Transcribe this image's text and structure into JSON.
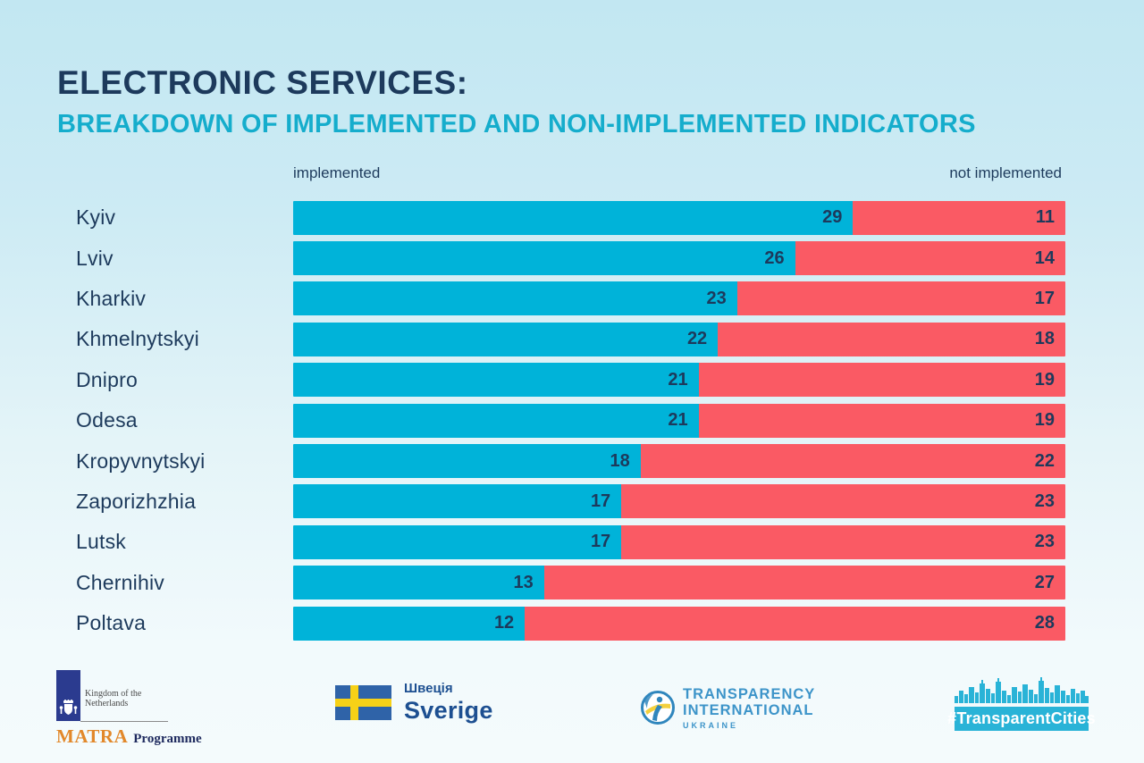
{
  "title": {
    "line1": "ELECTRONIC SERVICES:",
    "line2": "BREAKDOWN OF IMPLEMENTED AND NON-IMPLEMENTED INDICATORS"
  },
  "legend": {
    "left": "implemented",
    "right": "not implemented"
  },
  "chart_data": {
    "type": "bar",
    "orientation": "horizontal",
    "stacked": true,
    "total_per_row": 40,
    "categories": [
      "Kyiv",
      "Lviv",
      "Kharkiv",
      "Khmelnytskyi",
      "Dnipro",
      "Odesa",
      "Kropyvnytskyi",
      "Zaporizhzhia",
      "Lutsk",
      "Chernihiv",
      "Poltava"
    ],
    "series": [
      {
        "name": "implemented",
        "color": "#00b3d9",
        "values": [
          29,
          26,
          23,
          22,
          21,
          21,
          18,
          17,
          17,
          13,
          12
        ]
      },
      {
        "name": "not implemented",
        "color": "#fa5a64",
        "values": [
          11,
          14,
          17,
          18,
          19,
          19,
          22,
          23,
          23,
          27,
          28
        ]
      }
    ],
    "title": "ELECTRONIC SERVICES: BREAKDOWN OF IMPLEMENTED AND NON-IMPLEMENTED INDICATORS",
    "xlabel": "",
    "ylabel": "",
    "xlim": [
      0,
      40
    ],
    "grid": false,
    "legend_position": "top",
    "value_labels": "inside-right-of-segment"
  },
  "colors": {
    "background_top": "#c2e7f2",
    "background_bottom": "#f4fbfc",
    "title_navy": "#1d3a5c",
    "title_teal": "#15adcc",
    "bar_implemented": "#00b3d9",
    "bar_not_implemented": "#fa5a64",
    "value_text": "#1d3a5c"
  },
  "footer": {
    "matra": {
      "caption": "Kingdom of the Netherlands",
      "program_name": "MATRA",
      "program_word": "Programme"
    },
    "sweden": {
      "name_uk": "Швеція",
      "name_sv": "Sverige"
    },
    "transparency": {
      "line1": "TRANSPARENCY",
      "line2": "INTERNATIONAL",
      "line3": "UKRAINE"
    },
    "transparent_cities": {
      "tag": "#TransparentCities"
    }
  }
}
